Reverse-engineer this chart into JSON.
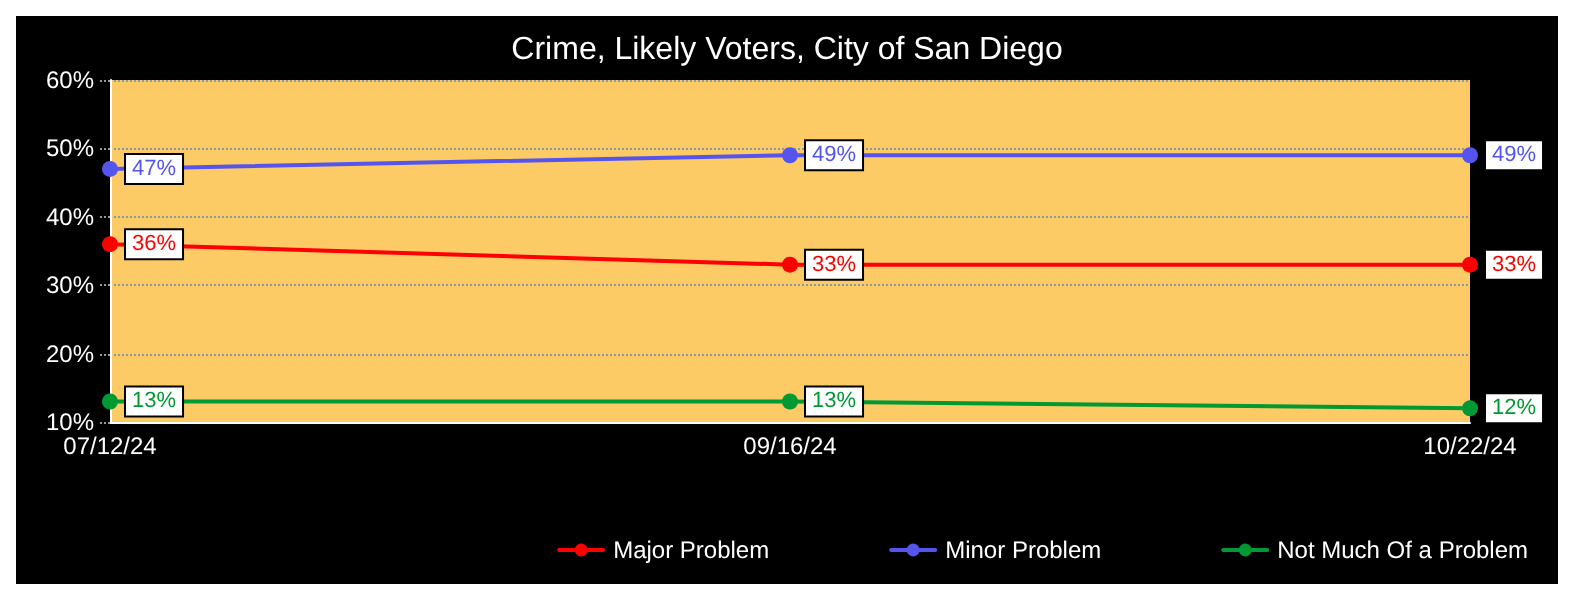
{
  "chart_data": {
    "type": "line",
    "title": "Crime, Likely Voters, City of San Diego",
    "categories": [
      "07/12/24",
      "09/16/24",
      "10/22/24"
    ],
    "series": [
      {
        "name": "Major Problem",
        "color": "#ff0000",
        "values": [
          36,
          33,
          33
        ],
        "value_labels": [
          "36%",
          "33%",
          "33%"
        ]
      },
      {
        "name": "Minor Problem",
        "color": "#5555ee",
        "values": [
          47,
          49,
          49
        ],
        "value_labels": [
          "47%",
          "49%",
          "49%"
        ]
      },
      {
        "name": "Not Much Of a Problem",
        "color": "#009933",
        "values": [
          13,
          13,
          12
        ],
        "value_labels": [
          "13%",
          "13%",
          "12%"
        ]
      }
    ],
    "ylim": [
      10,
      60
    ],
    "yticks": [
      {
        "value": 10,
        "label": "10%"
      },
      {
        "value": 20,
        "label": "20%"
      },
      {
        "value": 30,
        "label": "30%"
      },
      {
        "value": 40,
        "label": "40%"
      },
      {
        "value": 50,
        "label": "50%"
      },
      {
        "value": 60,
        "label": "60%"
      }
    ],
    "grid": "y",
    "legend": "bottom right",
    "marker": "circle",
    "line_style": "solid"
  }
}
